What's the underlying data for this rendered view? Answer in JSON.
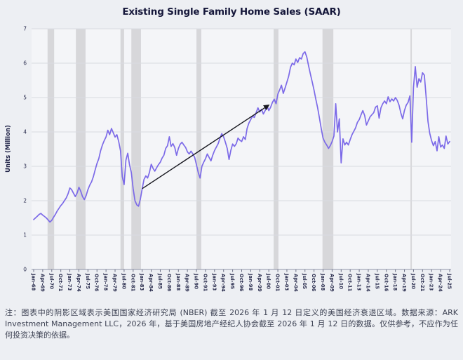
{
  "title": "Existing Single Family Home Sales (SAAR)",
  "note": "注：图表中的阴影区域表示美国国家经济研究局 (NBER) 截至 2026 年 1 月 12 日定义的美国经济衰退区域。数据来源：ARK Investment Management LLC，2026 年，基于美国房地产经纪人协会截至 2026 年 1 月 12 日的数据。仅供参考，不应作为任何投资决策的依据。",
  "colors": {
    "page_bg": "#edeff3",
    "plot_bg": "#f4f5f8",
    "grid": "#d9dbe1",
    "band": "#d7d7da",
    "axis": "#9095a8",
    "tick": "#6a6f85",
    "tick_text": "#2b2e4f",
    "axis_title": "#1d2045",
    "line": "#7c6ae8",
    "arrow": "#17171f"
  },
  "chart_data": {
    "type": "line",
    "title": "Existing Single Family Home Sales (SAAR)",
    "xlabel": "",
    "ylabel": "Units (Million)",
    "ylim": [
      0,
      7
    ],
    "yticks": [
      0,
      1,
      2,
      3,
      4,
      5,
      6,
      7
    ],
    "xlim": [
      1968.0,
      2025.5
    ],
    "grid": "horizontal",
    "legend_position": "none",
    "xtick_labels": [
      "Jan-68",
      "Apr-69",
      "Jul-70",
      "Oct-71",
      "Jan-73",
      "Apr-74",
      "Jul-75",
      "Oct-76",
      "Jan-78",
      "Apr-79",
      "Jul-80",
      "Oct-81",
      "Jan-83",
      "Apr-84",
      "Jul-85",
      "Oct-86",
      "Jan-88",
      "Apr-89",
      "Jul-90",
      "Oct-91",
      "Jan-93",
      "Apr-94",
      "Jul-95",
      "Oct-96",
      "Jan-98",
      "Apr-99",
      "Jul-00",
      "Oct-01",
      "Jan-03",
      "Apr-04",
      "Jul-05",
      "Oct-06",
      "Jan-08",
      "Apr-09",
      "Jul-10",
      "Oct-11",
      "Jan-13",
      "Apr-14",
      "Jul-15",
      "Oct-16",
      "Jan-18",
      "Apr-19",
      "Jul-20",
      "Oct-21",
      "Jan-23",
      "Apr-24",
      "Jul-25"
    ],
    "recession_bands": {
      "label": "NBER US recessions (shaded)",
      "ranges": [
        [
          1969.92,
          1970.83
        ],
        [
          1973.83,
          1975.17
        ],
        [
          1980.0,
          1980.5
        ],
        [
          1981.5,
          1982.83
        ],
        [
          1990.5,
          1991.17
        ],
        [
          2001.17,
          2001.83
        ],
        [
          2007.92,
          2009.42
        ],
        [
          2020.08,
          2020.25
        ]
      ]
    },
    "annotation_arrow": {
      "from": [
        1983.0,
        2.35
      ],
      "to": [
        2000.5,
        4.78
      ]
    },
    "series": [
      {
        "name": "Existing Single Family Home Sales (SAAR), Units (Million)",
        "points": [
          [
            1968.0,
            1.45
          ],
          [
            1968.25,
            1.5
          ],
          [
            1968.5,
            1.55
          ],
          [
            1968.75,
            1.6
          ],
          [
            1969.0,
            1.63
          ],
          [
            1969.25,
            1.58
          ],
          [
            1969.5,
            1.54
          ],
          [
            1969.75,
            1.5
          ],
          [
            1970.0,
            1.44
          ],
          [
            1970.25,
            1.38
          ],
          [
            1970.5,
            1.43
          ],
          [
            1970.75,
            1.52
          ],
          [
            1971.0,
            1.6
          ],
          [
            1971.25,
            1.7
          ],
          [
            1971.5,
            1.78
          ],
          [
            1971.75,
            1.86
          ],
          [
            1972.0,
            1.92
          ],
          [
            1972.25,
            2.0
          ],
          [
            1972.5,
            2.08
          ],
          [
            1972.75,
            2.2
          ],
          [
            1973.0,
            2.37
          ],
          [
            1973.25,
            2.32
          ],
          [
            1973.5,
            2.22
          ],
          [
            1973.75,
            2.12
          ],
          [
            1974.0,
            2.22
          ],
          [
            1974.25,
            2.39
          ],
          [
            1974.5,
            2.28
          ],
          [
            1974.75,
            2.12
          ],
          [
            1975.0,
            2.03
          ],
          [
            1975.25,
            2.15
          ],
          [
            1975.5,
            2.32
          ],
          [
            1975.75,
            2.45
          ],
          [
            1976.0,
            2.55
          ],
          [
            1976.25,
            2.7
          ],
          [
            1976.5,
            2.9
          ],
          [
            1976.75,
            3.08
          ],
          [
            1977.0,
            3.22
          ],
          [
            1977.25,
            3.45
          ],
          [
            1977.5,
            3.62
          ],
          [
            1977.75,
            3.75
          ],
          [
            1978.0,
            3.85
          ],
          [
            1978.25,
            4.05
          ],
          [
            1978.5,
            3.92
          ],
          [
            1978.75,
            4.1
          ],
          [
            1979.0,
            3.98
          ],
          [
            1979.25,
            3.85
          ],
          [
            1979.5,
            3.92
          ],
          [
            1979.75,
            3.72
          ],
          [
            1980.0,
            3.45
          ],
          [
            1980.25,
            2.7
          ],
          [
            1980.5,
            2.47
          ],
          [
            1980.75,
            3.18
          ],
          [
            1981.0,
            3.38
          ],
          [
            1981.25,
            3.05
          ],
          [
            1981.5,
            2.82
          ],
          [
            1981.75,
            2.35
          ],
          [
            1982.0,
            2.0
          ],
          [
            1982.25,
            1.88
          ],
          [
            1982.5,
            1.84
          ],
          [
            1982.75,
            2.05
          ],
          [
            1983.0,
            2.35
          ],
          [
            1983.25,
            2.62
          ],
          [
            1983.5,
            2.72
          ],
          [
            1983.75,
            2.66
          ],
          [
            1984.0,
            2.82
          ],
          [
            1984.25,
            3.06
          ],
          [
            1984.5,
            2.94
          ],
          [
            1984.75,
            2.86
          ],
          [
            1985.0,
            2.96
          ],
          [
            1985.25,
            3.05
          ],
          [
            1985.5,
            3.12
          ],
          [
            1985.75,
            3.24
          ],
          [
            1986.0,
            3.32
          ],
          [
            1986.25,
            3.52
          ],
          [
            1986.5,
            3.6
          ],
          [
            1986.75,
            3.86
          ],
          [
            1987.0,
            3.58
          ],
          [
            1987.25,
            3.66
          ],
          [
            1987.5,
            3.55
          ],
          [
            1987.75,
            3.32
          ],
          [
            1988.0,
            3.52
          ],
          [
            1988.25,
            3.64
          ],
          [
            1988.5,
            3.7
          ],
          [
            1988.75,
            3.62
          ],
          [
            1989.0,
            3.55
          ],
          [
            1989.25,
            3.42
          ],
          [
            1989.5,
            3.36
          ],
          [
            1989.75,
            3.44
          ],
          [
            1990.0,
            3.36
          ],
          [
            1990.25,
            3.26
          ],
          [
            1990.5,
            3.05
          ],
          [
            1990.75,
            2.82
          ],
          [
            1991.0,
            2.66
          ],
          [
            1991.25,
            3.0
          ],
          [
            1991.5,
            3.12
          ],
          [
            1991.75,
            3.22
          ],
          [
            1992.0,
            3.36
          ],
          [
            1992.25,
            3.26
          ],
          [
            1992.5,
            3.16
          ],
          [
            1992.75,
            3.32
          ],
          [
            1993.0,
            3.46
          ],
          [
            1993.25,
            3.56
          ],
          [
            1993.5,
            3.66
          ],
          [
            1993.75,
            3.82
          ],
          [
            1994.0,
            3.95
          ],
          [
            1994.25,
            3.86
          ],
          [
            1994.5,
            3.7
          ],
          [
            1994.75,
            3.52
          ],
          [
            1995.0,
            3.2
          ],
          [
            1995.25,
            3.46
          ],
          [
            1995.5,
            3.65
          ],
          [
            1995.75,
            3.58
          ],
          [
            1996.0,
            3.66
          ],
          [
            1996.25,
            3.82
          ],
          [
            1996.5,
            3.76
          ],
          [
            1996.75,
            3.72
          ],
          [
            1997.0,
            3.86
          ],
          [
            1997.25,
            3.78
          ],
          [
            1997.5,
            4.1
          ],
          [
            1997.75,
            4.26
          ],
          [
            1998.0,
            4.36
          ],
          [
            1998.25,
            4.46
          ],
          [
            1998.5,
            4.42
          ],
          [
            1998.75,
            4.56
          ],
          [
            1999.0,
            4.7
          ],
          [
            1999.25,
            4.58
          ],
          [
            1999.5,
            4.66
          ],
          [
            1999.75,
            4.52
          ],
          [
            2000.0,
            4.62
          ],
          [
            2000.25,
            4.76
          ],
          [
            2000.5,
            4.62
          ],
          [
            2000.75,
            4.72
          ],
          [
            2001.0,
            4.86
          ],
          [
            2001.25,
            4.95
          ],
          [
            2001.5,
            4.82
          ],
          [
            2001.75,
            5.1
          ],
          [
            2002.0,
            5.22
          ],
          [
            2002.25,
            5.36
          ],
          [
            2002.5,
            5.12
          ],
          [
            2002.75,
            5.28
          ],
          [
            2003.0,
            5.45
          ],
          [
            2003.25,
            5.62
          ],
          [
            2003.5,
            5.88
          ],
          [
            2003.75,
            6.0
          ],
          [
            2004.0,
            5.95
          ],
          [
            2004.25,
            6.12
          ],
          [
            2004.5,
            6.02
          ],
          [
            2004.75,
            6.16
          ],
          [
            2005.0,
            6.12
          ],
          [
            2005.25,
            6.28
          ],
          [
            2005.5,
            6.33
          ],
          [
            2005.75,
            6.18
          ],
          [
            2006.0,
            5.92
          ],
          [
            2006.25,
            5.68
          ],
          [
            2006.5,
            5.45
          ],
          [
            2006.75,
            5.22
          ],
          [
            2007.0,
            4.95
          ],
          [
            2007.25,
            4.7
          ],
          [
            2007.5,
            4.4
          ],
          [
            2007.75,
            4.1
          ],
          [
            2008.0,
            3.82
          ],
          [
            2008.25,
            3.7
          ],
          [
            2008.5,
            3.62
          ],
          [
            2008.75,
            3.52
          ],
          [
            2009.0,
            3.6
          ],
          [
            2009.25,
            3.72
          ],
          [
            2009.5,
            3.88
          ],
          [
            2009.75,
            4.82
          ],
          [
            2010.0,
            4.0
          ],
          [
            2010.25,
            4.38
          ],
          [
            2010.5,
            3.1
          ],
          [
            2010.75,
            3.8
          ],
          [
            2011.0,
            3.62
          ],
          [
            2011.25,
            3.7
          ],
          [
            2011.5,
            3.62
          ],
          [
            2011.75,
            3.78
          ],
          [
            2012.0,
            3.92
          ],
          [
            2012.25,
            4.02
          ],
          [
            2012.5,
            4.12
          ],
          [
            2012.75,
            4.28
          ],
          [
            2013.0,
            4.36
          ],
          [
            2013.25,
            4.5
          ],
          [
            2013.5,
            4.62
          ],
          [
            2013.75,
            4.48
          ],
          [
            2014.0,
            4.2
          ],
          [
            2014.25,
            4.32
          ],
          [
            2014.5,
            4.44
          ],
          [
            2014.75,
            4.5
          ],
          [
            2015.0,
            4.56
          ],
          [
            2015.25,
            4.72
          ],
          [
            2015.5,
            4.76
          ],
          [
            2015.75,
            4.4
          ],
          [
            2016.0,
            4.7
          ],
          [
            2016.25,
            4.82
          ],
          [
            2016.5,
            4.9
          ],
          [
            2016.75,
            4.82
          ],
          [
            2017.0,
            5.02
          ],
          [
            2017.25,
            4.88
          ],
          [
            2017.5,
            4.96
          ],
          [
            2017.75,
            4.9
          ],
          [
            2018.0,
            5.0
          ],
          [
            2018.25,
            4.92
          ],
          [
            2018.5,
            4.78
          ],
          [
            2018.75,
            4.55
          ],
          [
            2019.0,
            4.38
          ],
          [
            2019.25,
            4.62
          ],
          [
            2019.5,
            4.78
          ],
          [
            2019.75,
            4.86
          ],
          [
            2020.0,
            5.05
          ],
          [
            2020.25,
            3.7
          ],
          [
            2020.5,
            5.3
          ],
          [
            2020.75,
            5.9
          ],
          [
            2021.0,
            5.3
          ],
          [
            2021.25,
            5.55
          ],
          [
            2021.5,
            5.45
          ],
          [
            2021.75,
            5.72
          ],
          [
            2022.0,
            5.65
          ],
          [
            2022.25,
            5.0
          ],
          [
            2022.5,
            4.3
          ],
          [
            2022.75,
            3.96
          ],
          [
            2023.0,
            3.75
          ],
          [
            2023.25,
            3.6
          ],
          [
            2023.5,
            3.72
          ],
          [
            2023.75,
            3.45
          ],
          [
            2024.0,
            3.86
          ],
          [
            2024.25,
            3.56
          ],
          [
            2024.5,
            3.62
          ],
          [
            2024.75,
            3.52
          ],
          [
            2025.0,
            3.88
          ],
          [
            2025.25,
            3.65
          ],
          [
            2025.5,
            3.72
          ]
        ]
      }
    ]
  }
}
